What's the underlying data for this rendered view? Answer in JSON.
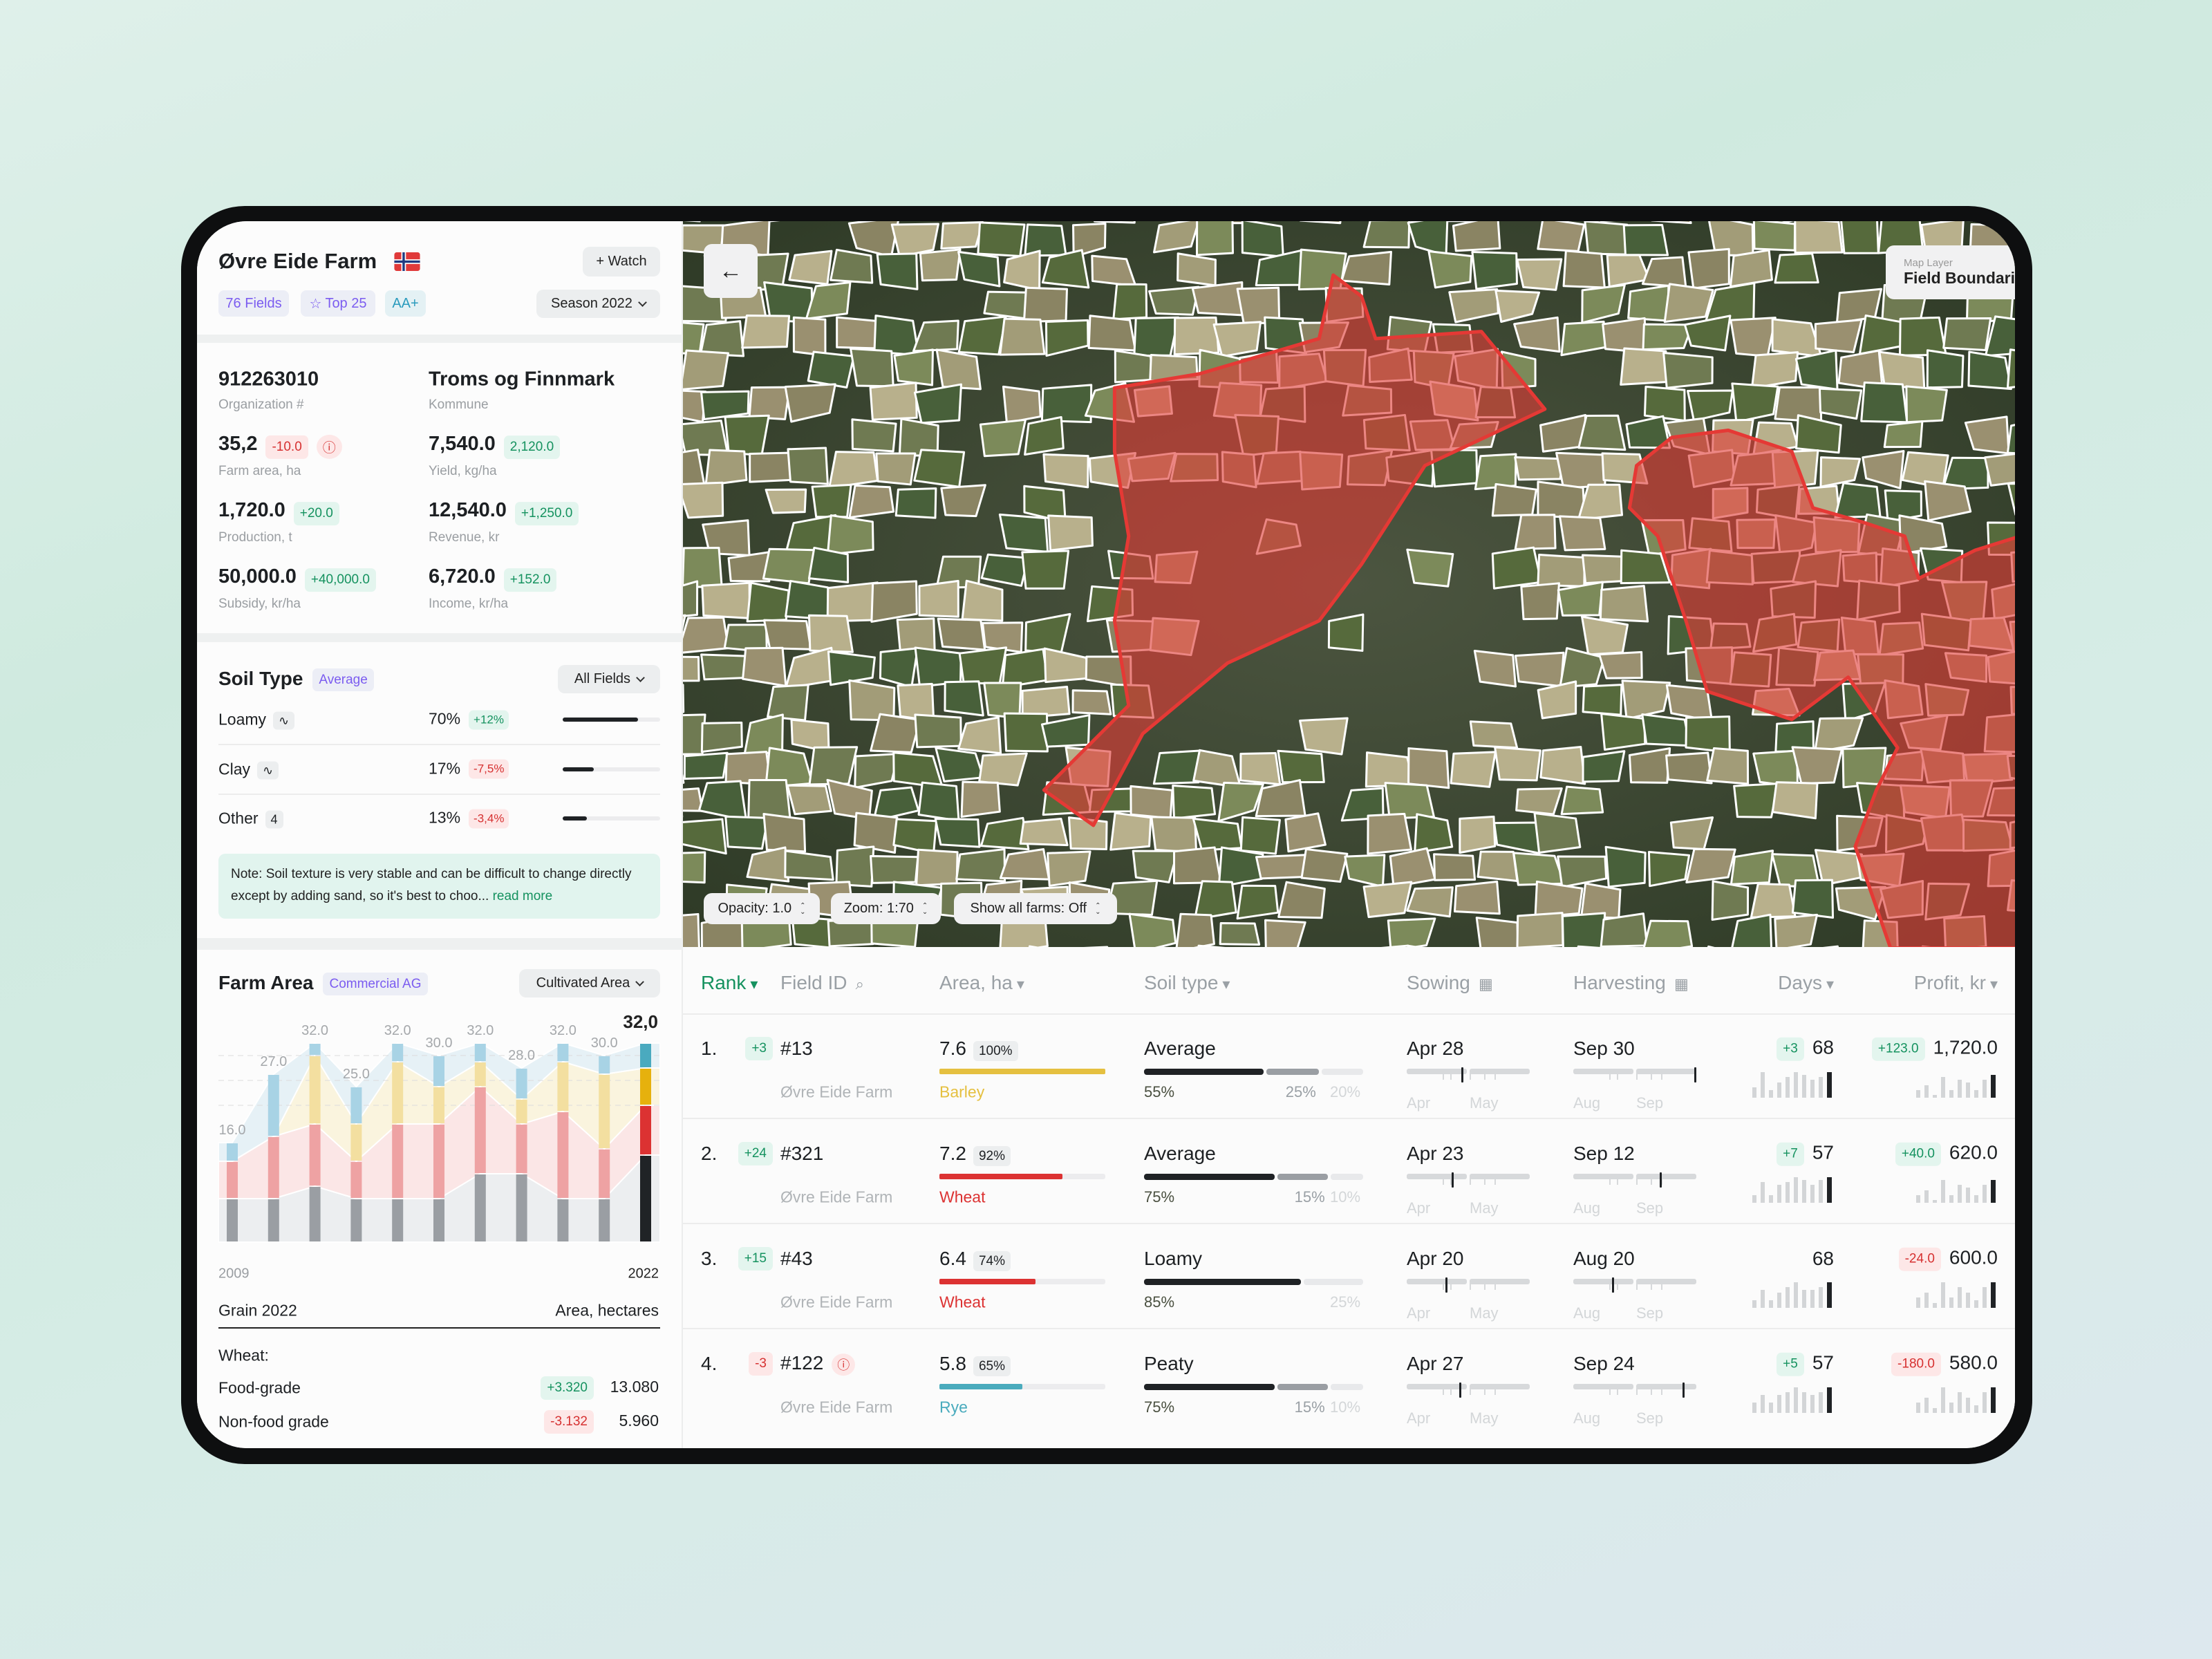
{
  "farm": {
    "name": "Øvre Eide Farm",
    "flag_icon": "norway-flag-icon",
    "watch_label": "+ Watch",
    "tags": [
      "76 Fields",
      "Top 25",
      "AA+"
    ],
    "season_label": "Season 2022"
  },
  "stats": [
    {
      "value": "912263010",
      "label": "Organization #"
    },
    {
      "value": "Troms og Finnmark",
      "label": "Kommune"
    },
    {
      "value": "35,2",
      "delta": "-10.0",
      "trend": "neg",
      "warning": true,
      "label": "Farm area, ha"
    },
    {
      "value": "7,540.0",
      "delta": "2,120.0",
      "trend": "pos",
      "label": "Yield, kg/ha"
    },
    {
      "value": "1,720.0",
      "delta": "+20.0",
      "trend": "pos",
      "label": "Production, t"
    },
    {
      "value": "12,540.0",
      "delta": "+1,250.0",
      "trend": "pos",
      "label": "Revenue, kr"
    },
    {
      "value": "50,000.0",
      "delta": "+40,000.0",
      "trend": "pos",
      "label": "Subsidy, kr/ha"
    },
    {
      "value": "6,720.0",
      "delta": "+152.0",
      "trend": "pos",
      "label": "Income, kr/ha"
    }
  ],
  "soil": {
    "title": "Soil Type",
    "tag": "Average",
    "filter_label": "All Fields",
    "rows": [
      {
        "name": "Loamy",
        "badge": "∿",
        "percent": "70%",
        "share": 0.77,
        "delta": "+12%",
        "trend": "pos"
      },
      {
        "name": "Clay",
        "badge": "∿",
        "percent": "17%",
        "share": 0.32,
        "delta": "-7,5%",
        "trend": "neg"
      },
      {
        "name": "Other",
        "badge": "4",
        "percent": "13%",
        "share": 0.25,
        "delta": "-3,4%",
        "trend": "neg"
      }
    ],
    "note": "Note: Soil texture is very stable and can be difficult to change directly except by adding sand, so it's best to choo...",
    "read_more": "read more"
  },
  "farm_area": {
    "title": "Farm Area",
    "tag": "Commercial AG",
    "filter_label": "Cultivated Area",
    "summary_title": "Grain 2022",
    "summary_unit": "Area, hectares",
    "group_label": "Wheat:",
    "items": [
      {
        "name": "Food-grade",
        "delta": "+3.320",
        "trend": "pos",
        "value": "13.080"
      },
      {
        "name": "Non-food grade",
        "delta": "-3.132",
        "trend": "neg",
        "value": "5.960"
      }
    ]
  },
  "chart_data": {
    "type": "bar",
    "stacked": true,
    "x_labels": [
      "2009",
      "2022"
    ],
    "total_labels": [
      "16.0",
      "27.0",
      "32.0",
      "25.0",
      "32.0",
      "30.0",
      "32.0",
      "28.0",
      "32.0",
      "30.0",
      "32,0"
    ],
    "series": [
      {
        "color": "#9a9ea3",
        "highlight": "#202326",
        "values": [
          7,
          7,
          9,
          7,
          7,
          7,
          11,
          11,
          7,
          7,
          14
        ]
      },
      {
        "color": "#eea2a3",
        "highlight": "#dc3232",
        "values": [
          6,
          10,
          10,
          6,
          12,
          12,
          14,
          8,
          14,
          8,
          8
        ]
      },
      {
        "color": "#f3dfa0",
        "highlight": "#e6b10d",
        "values": [
          0,
          0,
          11,
          6,
          10,
          6,
          4,
          4,
          8,
          12,
          6
        ]
      },
      {
        "color": "#a8d3e5",
        "highlight": "#4aaabf",
        "values": [
          3,
          10,
          2,
          6,
          3,
          5,
          3,
          5,
          3,
          3,
          4
        ]
      }
    ],
    "ylim": [
      0,
      32
    ],
    "grid": true,
    "grid_y": [
      22,
      26,
      30
    ]
  },
  "map": {
    "layer_caption": "Map Layer",
    "layer_value": "Field Boundaries",
    "controls": [
      "Opacity: 1.0",
      "Zoom: 1:70",
      "Show all farms: Off"
    ],
    "highlight_color": "#e53935"
  },
  "table": {
    "headers": [
      "Rank",
      "Field ID",
      "Area, ha",
      "Soil type",
      "Sowing",
      "Harvesting",
      "Days",
      "Profit, kr"
    ],
    "accent": "#15925f",
    "rows": [
      {
        "rank": "1.",
        "rank_delta": "+3",
        "rank_trend": "pos",
        "field": "#13",
        "warning": false,
        "farm": "Øvre Eide Farm",
        "area": "7.6",
        "area_pct": "100%",
        "area_share": 1.0,
        "crop": "Barley",
        "crop_color": "#e5c040",
        "soil": "Average",
        "soil_split": [
          {
            "pct": "55%",
            "v": 55
          },
          {
            "pct": "25%",
            "v": 25
          },
          {
            "pct": "20%",
            "v": 20
          }
        ],
        "sowing": "Apr 28",
        "sow_months": [
          "Apr",
          "May"
        ],
        "harvest": "Sep 30",
        "harv_months": [
          "Aug",
          "Sep"
        ],
        "days_delta": "+3",
        "days": "68",
        "days_hist": [
          4,
          10,
          3,
          6,
          8,
          10,
          9,
          7,
          8,
          10
        ],
        "profit_delta": "+123.0",
        "profit_trend": "pos",
        "profit": "1,720.0",
        "profit_hist": [
          3,
          5,
          1,
          8,
          3,
          7,
          6,
          3,
          7,
          9
        ]
      },
      {
        "rank": "2.",
        "rank_delta": "+24",
        "rank_trend": "pos",
        "field": "#321",
        "warning": false,
        "farm": "Øvre Eide Farm",
        "area": "7.2",
        "area_pct": "92%",
        "area_share": 0.74,
        "crop": "Wheat",
        "crop_color": "#dc3232",
        "soil": "Average",
        "soil_split": [
          {
            "pct": "75%",
            "v": 60
          },
          {
            "pct": "15%",
            "v": 24
          },
          {
            "pct": "10%",
            "v": 16
          }
        ],
        "sowing": "Apr 23",
        "sow_months": [
          "Apr",
          "May"
        ],
        "harvest": "Sep 12",
        "harv_months": [
          "Aug",
          "Sep"
        ],
        "days_delta": "+7",
        "days": "57",
        "days_hist": [
          3,
          8,
          3,
          7,
          8,
          10,
          9,
          7,
          9,
          10
        ],
        "profit_delta": "+40.0",
        "profit_trend": "pos",
        "profit": "620.0",
        "profit_hist": [
          3,
          5,
          1,
          9,
          3,
          7,
          6,
          3,
          7,
          9
        ]
      },
      {
        "rank": "3.",
        "rank_delta": "+15",
        "rank_trend": "pos",
        "field": "#43",
        "warning": false,
        "farm": "Øvre Eide Farm",
        "area": "6.4",
        "area_pct": "74%",
        "area_share": 0.58,
        "crop": "Wheat",
        "crop_color": "#dc3232",
        "soil": "Loamy",
        "soil_split": [
          {
            "pct": "85%",
            "v": 72
          },
          {
            "pct": "",
            "v": 0
          },
          {
            "pct": "25%",
            "v": 28
          }
        ],
        "sowing": "Apr 20",
        "sow_months": [
          "Apr",
          "May"
        ],
        "harvest": "Aug 20",
        "harv_months": [
          "Aug",
          "Sep"
        ],
        "days_delta": "",
        "days": "68",
        "days_hist": [
          3,
          7,
          3,
          6,
          8,
          10,
          7,
          7,
          8,
          10
        ],
        "profit_delta": "-24.0",
        "profit_trend": "neg",
        "profit": "600.0",
        "profit_hist": [
          4,
          6,
          2,
          10,
          4,
          8,
          6,
          3,
          8,
          10
        ]
      },
      {
        "rank": "4.",
        "rank_delta": "-3",
        "rank_trend": "neg",
        "field": "#122",
        "warning": true,
        "farm": "Øvre Eide Farm",
        "area": "5.8",
        "area_pct": "65%",
        "area_share": 0.5,
        "crop": "Rye",
        "crop_color": "#4aabbd",
        "soil": "Peaty",
        "soil_split": [
          {
            "pct": "75%",
            "v": 60
          },
          {
            "pct": "15%",
            "v": 24
          },
          {
            "pct": "10%",
            "v": 16
          }
        ],
        "sowing": "Apr 27",
        "sow_months": [
          "Apr",
          "May"
        ],
        "harvest": "Sep 24",
        "harv_months": [
          "Aug",
          "Sep"
        ],
        "days_delta": "+5",
        "days": "57",
        "days_hist": [
          4,
          7,
          4,
          7,
          8,
          10,
          8,
          7,
          8,
          10
        ],
        "profit_delta": "-180.0",
        "profit_trend": "neg",
        "profit": "580.0",
        "profit_hist": [
          4,
          6,
          2,
          10,
          4,
          8,
          6,
          3,
          8,
          10
        ]
      }
    ]
  }
}
